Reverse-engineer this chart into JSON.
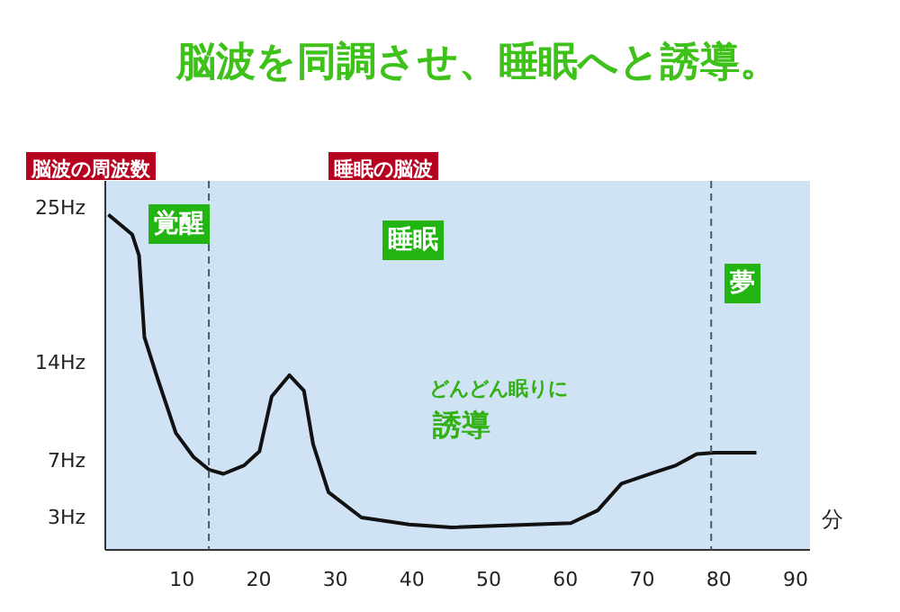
{
  "chart_data": {
    "type": "line",
    "title": "脳波を同調させ、睡眠へと誘導。",
    "ylabel": "脳波の周波数",
    "xlabel": "分",
    "x": [
      0.4,
      3.5,
      4.4,
      5.1,
      6.8,
      9.2,
      11.5,
      13.5,
      15.4,
      18.1,
      20.1,
      21.7,
      24,
      25.9,
      27.1,
      29.1,
      33.4,
      39.6,
      45.1,
      60.7,
      64.2,
      67.3,
      71.6,
      74.4,
      77.1,
      79.5,
      84.9
    ],
    "series": [
      {
        "color": "#111111",
        "values": [
          24.5,
          23.1,
          21.6,
          15.8,
          12.9,
          9.0,
          7.3,
          6.4,
          6.1,
          6.7,
          7.7,
          11.6,
          13.1,
          12.0,
          8.2,
          4.8,
          3.0,
          2.5,
          2.3,
          2.6,
          3.5,
          5.4,
          6.2,
          6.7,
          7.5,
          7.6,
          7.6
        ]
      }
    ],
    "xlim": [
      0,
      92
    ],
    "ylim": [
      0.7,
      26.9
    ],
    "xticks": [
      10,
      20,
      30,
      40,
      50,
      60,
      70,
      80,
      90
    ],
    "yticks": [
      {
        "value": 3,
        "label": "3Hz"
      },
      {
        "value": 7,
        "label": "7Hz"
      },
      {
        "value": 14,
        "label": "14Hz"
      },
      {
        "value": 25,
        "label": "25Hz"
      }
    ],
    "ref_lines": [
      {
        "axis": "x",
        "value": 13.5,
        "line_style": "dashed",
        "color": "#4a5a6a"
      },
      {
        "axis": "x",
        "value": 79,
        "line_style": "dashed",
        "color": "#4a5a6a"
      }
    ],
    "annotations": [
      "睡眠の脳波",
      "覚醒",
      "睡眠",
      "夢",
      "どんどん眠りに",
      "誘導"
    ],
    "grid": false,
    "marker": "none",
    "line_style": "solid"
  }
}
